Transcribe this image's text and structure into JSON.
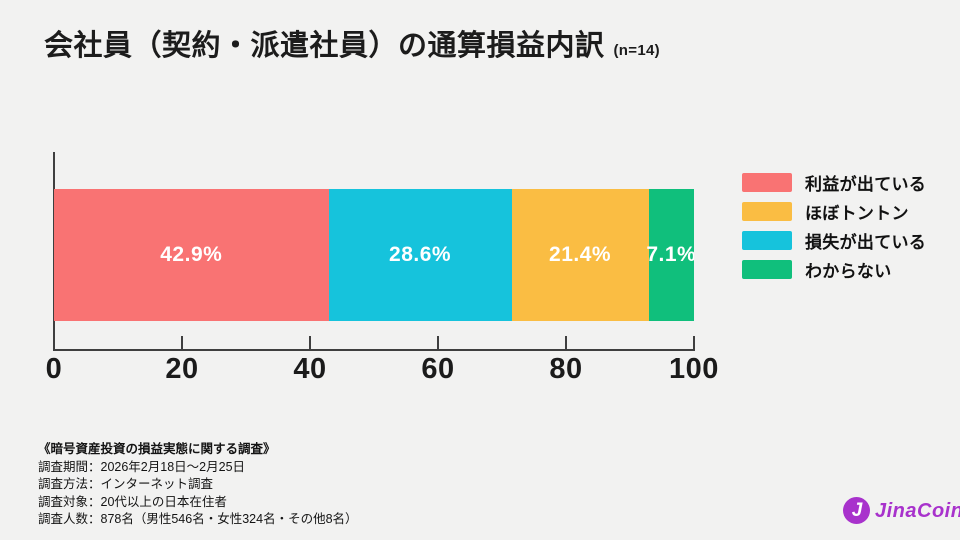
{
  "title": {
    "text": "会社員（契約・派遣社員）の通算損益内訳",
    "sample_label": "(n=14)"
  },
  "chart_data": {
    "type": "bar",
    "subtype": "horizontal-stacked-single-bar",
    "unit": "%",
    "segments": [
      {
        "label": "利益が出ている",
        "value": 42.9,
        "display": "42.9%",
        "color": "#f97373"
      },
      {
        "label": "損失が出ている",
        "value": 28.6,
        "display": "28.6%",
        "color": "#16c3dc"
      },
      {
        "label": "ほぼトントン",
        "value": 21.4,
        "display": "21.4%",
        "color": "#fabd43"
      },
      {
        "label": "わからない",
        "value": 7.1,
        "display": "7.1%",
        "color": "#10bf7c"
      }
    ],
    "x_axis": {
      "min": 0,
      "max": 100,
      "ticks": [
        0,
        20,
        40,
        60,
        80,
        100
      ],
      "grid": false
    },
    "legend": {
      "position": "right",
      "items": [
        {
          "label": "利益が出ている",
          "color": "#f97373"
        },
        {
          "label": "ほぼトントン",
          "color": "#fabd43"
        },
        {
          "label": "損失が出ている",
          "color": "#16c3dc"
        },
        {
          "label": "わからない",
          "color": "#10bf7c"
        }
      ]
    }
  },
  "footer": {
    "lines": [
      "《暗号資産投資の損益実態に関する調査》",
      "調査期間：2026年2月18日〜2月25日",
      "調査方法：インターネット調査",
      "調査対象：20代以上の日本在住者",
      "調査人数：878名（男性546名・女性324名・その他8名）"
    ]
  },
  "logo": {
    "text": "JinaCoin",
    "mark": "J",
    "color": "#a832cc"
  }
}
